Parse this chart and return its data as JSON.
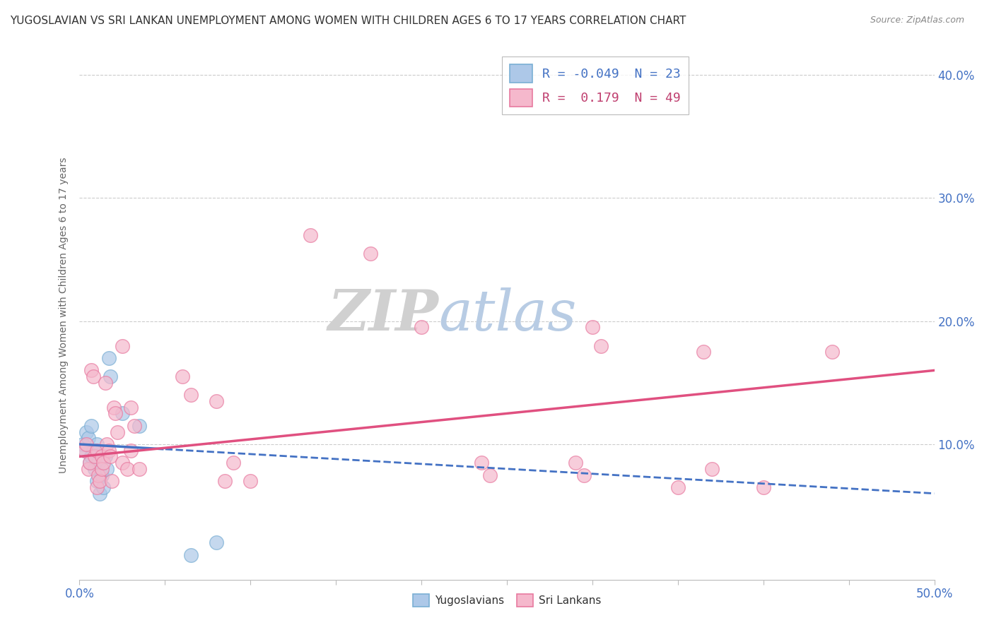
{
  "title": "YUGOSLAVIAN VS SRI LANKAN UNEMPLOYMENT AMONG WOMEN WITH CHILDREN AGES 6 TO 17 YEARS CORRELATION CHART",
  "source": "Source: ZipAtlas.com",
  "ylabel": "Unemployment Among Women with Children Ages 6 to 17 years",
  "legend_yug": "R = -0.049  N = 23",
  "legend_sri": "R =  0.179  N = 49",
  "legend_label_yug": "Yugoslavians",
  "legend_label_sri": "Sri Lankans",
  "yug_fill_color": "#adc8e8",
  "sri_fill_color": "#f5b8cc",
  "yug_edge_color": "#7aafd4",
  "sri_edge_color": "#e87aa0",
  "yug_line_color": "#4472c4",
  "sri_line_color": "#e05080",
  "background_color": "#ffffff",
  "xlim": [
    0.0,
    0.5
  ],
  "ylim": [
    -0.01,
    0.42
  ],
  "yug_points": [
    [
      0.002,
      0.1
    ],
    [
      0.003,
      0.095
    ],
    [
      0.004,
      0.11
    ],
    [
      0.005,
      0.105
    ],
    [
      0.006,
      0.085
    ],
    [
      0.007,
      0.09
    ],
    [
      0.007,
      0.115
    ],
    [
      0.008,
      0.095
    ],
    [
      0.009,
      0.08
    ],
    [
      0.01,
      0.1
    ],
    [
      0.01,
      0.07
    ],
    [
      0.011,
      0.085
    ],
    [
      0.012,
      0.06
    ],
    [
      0.013,
      0.075
    ],
    [
      0.014,
      0.065
    ],
    [
      0.015,
      0.09
    ],
    [
      0.016,
      0.08
    ],
    [
      0.017,
      0.17
    ],
    [
      0.018,
      0.155
    ],
    [
      0.025,
      0.125
    ],
    [
      0.035,
      0.115
    ],
    [
      0.065,
      0.01
    ],
    [
      0.08,
      0.02
    ]
  ],
  "sri_points": [
    [
      0.003,
      0.095
    ],
    [
      0.004,
      0.1
    ],
    [
      0.005,
      0.08
    ],
    [
      0.006,
      0.085
    ],
    [
      0.007,
      0.16
    ],
    [
      0.008,
      0.155
    ],
    [
      0.009,
      0.09
    ],
    [
      0.01,
      0.095
    ],
    [
      0.01,
      0.065
    ],
    [
      0.011,
      0.075
    ],
    [
      0.012,
      0.07
    ],
    [
      0.013,
      0.09
    ],
    [
      0.013,
      0.08
    ],
    [
      0.014,
      0.085
    ],
    [
      0.015,
      0.15
    ],
    [
      0.016,
      0.1
    ],
    [
      0.017,
      0.095
    ],
    [
      0.018,
      0.09
    ],
    [
      0.019,
      0.07
    ],
    [
      0.02,
      0.13
    ],
    [
      0.021,
      0.125
    ],
    [
      0.022,
      0.11
    ],
    [
      0.025,
      0.085
    ],
    [
      0.025,
      0.18
    ],
    [
      0.028,
      0.08
    ],
    [
      0.03,
      0.13
    ],
    [
      0.03,
      0.095
    ],
    [
      0.032,
      0.115
    ],
    [
      0.035,
      0.08
    ],
    [
      0.06,
      0.155
    ],
    [
      0.065,
      0.14
    ],
    [
      0.08,
      0.135
    ],
    [
      0.085,
      0.07
    ],
    [
      0.09,
      0.085
    ],
    [
      0.1,
      0.07
    ],
    [
      0.135,
      0.27
    ],
    [
      0.17,
      0.255
    ],
    [
      0.2,
      0.195
    ],
    [
      0.235,
      0.085
    ],
    [
      0.24,
      0.075
    ],
    [
      0.29,
      0.085
    ],
    [
      0.295,
      0.075
    ],
    [
      0.3,
      0.195
    ],
    [
      0.305,
      0.18
    ],
    [
      0.35,
      0.065
    ],
    [
      0.365,
      0.175
    ],
    [
      0.37,
      0.08
    ],
    [
      0.4,
      0.065
    ],
    [
      0.44,
      0.175
    ]
  ]
}
